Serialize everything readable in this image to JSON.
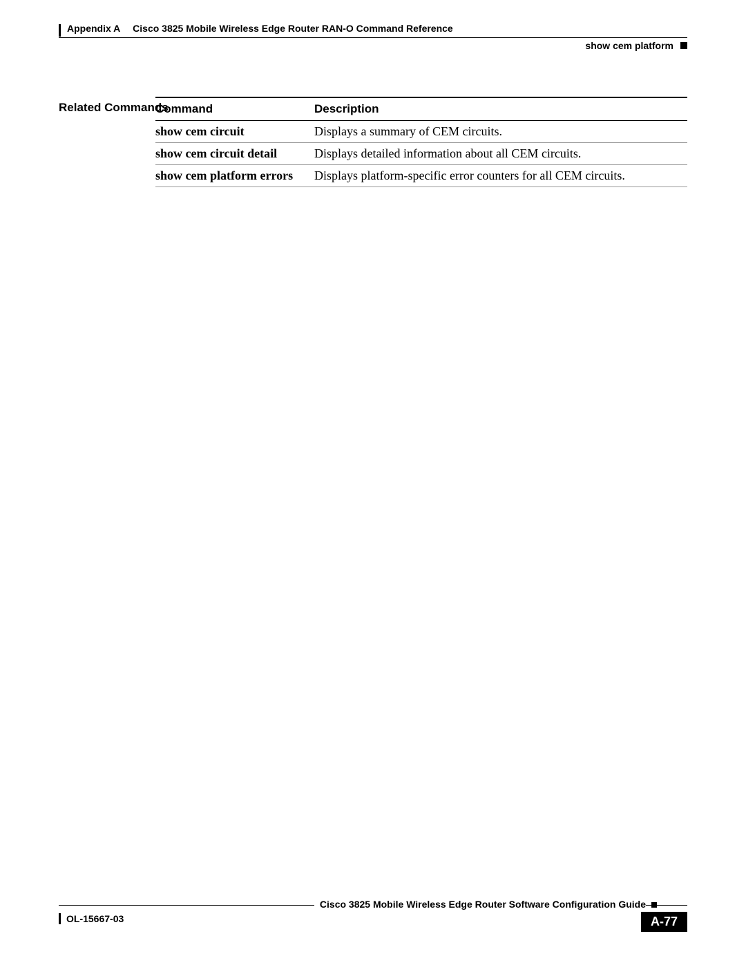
{
  "header": {
    "appendix_label": "Appendix A",
    "chapter_title": "Cisco 3825 Mobile Wireless Edge Router RAN-O Command Reference",
    "section_name": "show cem platform"
  },
  "related_commands": {
    "label": "Related Commands",
    "columns": {
      "command": "Command",
      "description": "Description"
    },
    "rows": [
      {
        "command": "show cem circuit",
        "description": "Displays a summary of CEM circuits."
      },
      {
        "command": "show cem circuit detail",
        "description": "Displays detailed information about all CEM circuits."
      },
      {
        "command": "show cem platform errors",
        "description": "Displays platform-specific error counters for all CEM circuits."
      }
    ]
  },
  "footer": {
    "guide_title": "Cisco 3825 Mobile Wireless Edge Router Software Configuration Guide",
    "doc_number": "OL-15667-03",
    "page_number": "A-77"
  },
  "colors": {
    "text": "#000000",
    "background": "#ffffff",
    "rule": "#000000",
    "row_rule": "#999999",
    "badge_bg": "#000000",
    "badge_fg": "#ffffff"
  }
}
